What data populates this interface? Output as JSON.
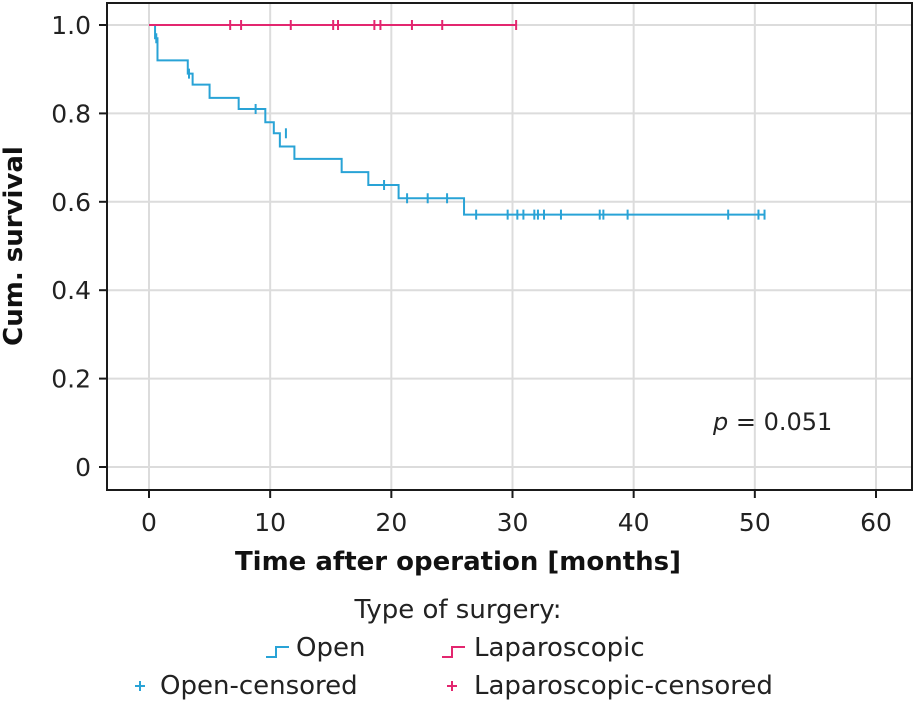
{
  "chart_data": {
    "type": "line",
    "subtype": "kaplan-meier",
    "xlabel": "Time after operation [months]",
    "ylabel": "Cum. survival",
    "xlim": [
      0,
      60
    ],
    "ylim": [
      0,
      1.0
    ],
    "xticks": [
      0,
      10,
      20,
      30,
      40,
      50,
      60
    ],
    "yticks": [
      {
        "value": 0,
        "label": "0"
      },
      {
        "value": 0.2,
        "label": "0.2"
      },
      {
        "value": 0.4,
        "label": "0.4"
      },
      {
        "value": 0.6,
        "label": "0.6"
      },
      {
        "value": 0.8,
        "label": "0.8"
      },
      {
        "value": 1.0,
        "label": "1.0"
      }
    ],
    "grid": true,
    "annotation": {
      "p_symbol": "p",
      "p_rest": " = 0.051"
    },
    "legend": {
      "title": "Type of surgery:",
      "placement": "bottom",
      "entries": {
        "open": "Open",
        "laparoscopic": "Laparoscopic",
        "open_censored": "Open-censored",
        "laparoscopic_censored": "Laparoscopic-censored"
      }
    },
    "series": [
      {
        "name": "Open",
        "color": "#29a3d6",
        "steps": [
          [
            0,
            1.0
          ],
          [
            0.5,
            0.97
          ],
          [
            0.7,
            0.92
          ],
          [
            3.2,
            0.89
          ],
          [
            3.6,
            0.865
          ],
          [
            5.0,
            0.835
          ],
          [
            7.4,
            0.81
          ],
          [
            9.6,
            0.78
          ],
          [
            10.3,
            0.755
          ],
          [
            10.8,
            0.725
          ],
          [
            12.0,
            0.697
          ],
          [
            15.9,
            0.667
          ],
          [
            18.1,
            0.638
          ],
          [
            20.6,
            0.608
          ],
          [
            26.0,
            0.571
          ]
        ],
        "end_x": 50.8,
        "censored": [
          [
            0.6,
            0.97
          ],
          [
            3.3,
            0.89
          ],
          [
            8.8,
            0.81
          ],
          [
            11.3,
            0.755
          ],
          [
            19.4,
            0.638
          ],
          [
            21.3,
            0.608
          ],
          [
            23.0,
            0.608
          ],
          [
            24.6,
            0.608
          ],
          [
            27.0,
            0.571
          ],
          [
            29.6,
            0.571
          ],
          [
            30.4,
            0.571
          ],
          [
            30.9,
            0.571
          ],
          [
            31.8,
            0.571
          ],
          [
            32.1,
            0.571
          ],
          [
            32.6,
            0.571
          ],
          [
            34.0,
            0.571
          ],
          [
            37.2,
            0.571
          ],
          [
            37.5,
            0.571
          ],
          [
            39.5,
            0.571
          ],
          [
            47.8,
            0.571
          ],
          [
            50.3,
            0.571
          ],
          [
            50.8,
            0.571
          ]
        ]
      },
      {
        "name": "Laparoscopic",
        "color": "#e3266f",
        "steps": [
          [
            0,
            1.0
          ]
        ],
        "end_x": 30.3,
        "censored": [
          [
            6.7,
            1.0
          ],
          [
            7.6,
            1.0
          ],
          [
            11.7,
            1.0
          ],
          [
            15.2,
            1.0
          ],
          [
            15.6,
            1.0
          ],
          [
            18.6,
            1.0
          ],
          [
            19.1,
            1.0
          ],
          [
            21.7,
            1.0
          ],
          [
            24.2,
            1.0
          ],
          [
            30.3,
            1.0
          ]
        ]
      }
    ]
  }
}
